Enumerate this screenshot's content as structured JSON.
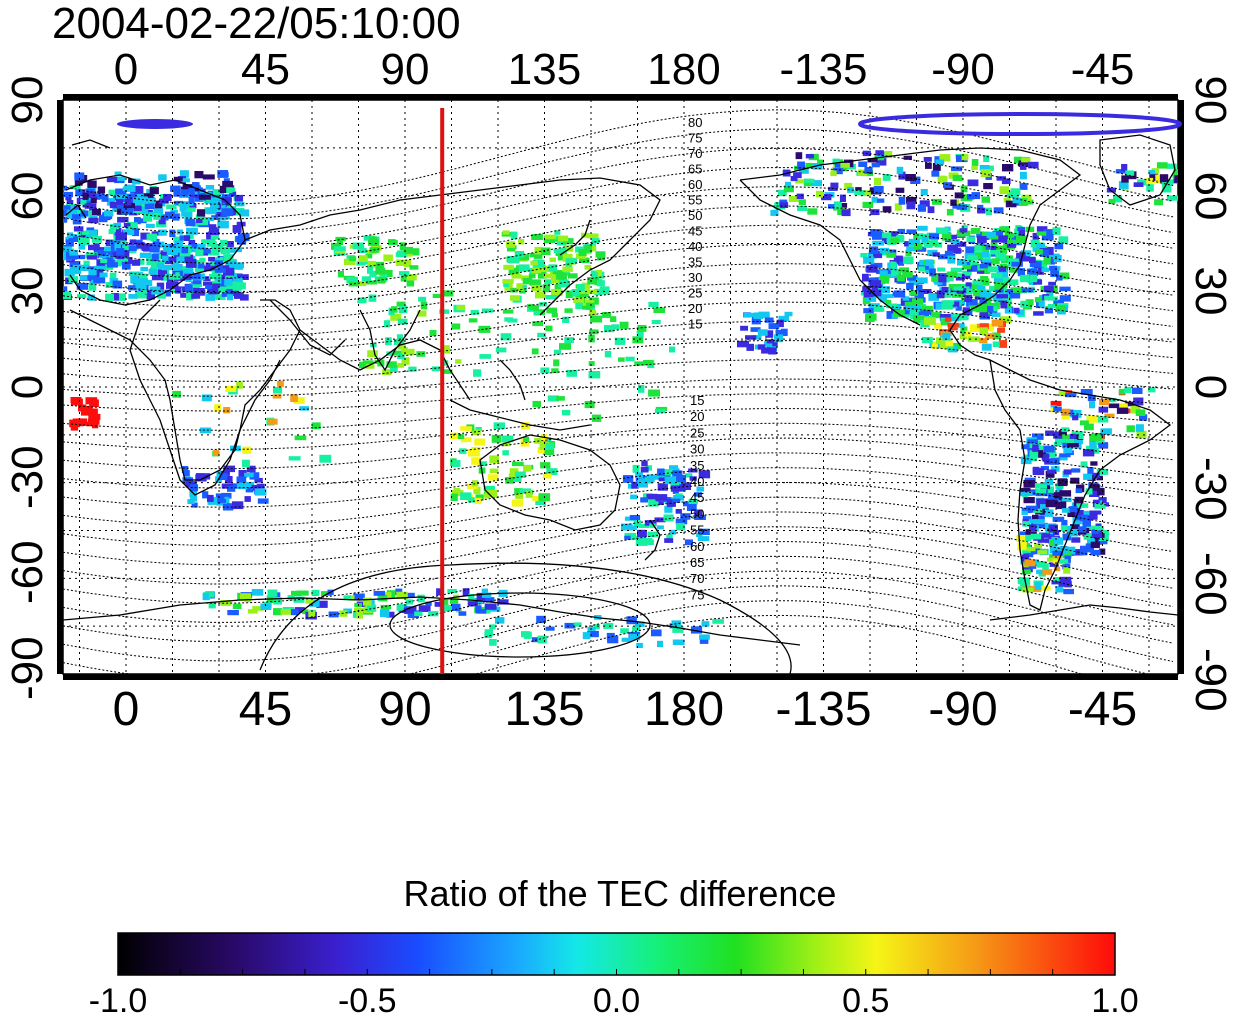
{
  "title": "2004-02-22/05:10:00",
  "axes": {
    "x_ticks": [
      "0",
      "45",
      "90",
      "135",
      "180",
      "-135",
      "-90",
      "-45"
    ],
    "y_ticks": [
      "90",
      "60",
      "30",
      "0",
      "-30",
      "-60",
      "-90"
    ]
  },
  "terminator_longitude": 102,
  "contour_labels_north": [
    "80",
    "75",
    "70",
    "65",
    "60",
    "55",
    "50",
    "45",
    "40",
    "35",
    "30",
    "25",
    "20",
    "15"
  ],
  "contour_labels_south": [
    "15",
    "20",
    "25",
    "30",
    "35",
    "40",
    "45",
    "50",
    "55",
    "60",
    "65",
    "70",
    "75"
  ],
  "colorbar": {
    "title": "Ratio of the TEC difference",
    "ticks": [
      "-1.0",
      "-0.5",
      "0.0",
      "0.5",
      "1.0"
    ],
    "range": [
      -1.0,
      1.0
    ]
  },
  "colors": {
    "terminator": "#dd1111",
    "colormap": [
      "#000000",
      "#2a0a6b",
      "#3a2be0",
      "#1a5cff",
      "#12c8f0",
      "#16f0a0",
      "#1ee33a",
      "#9af01a",
      "#f5f516",
      "#f59a16",
      "#f5401a",
      "#ff0d0d"
    ]
  }
}
